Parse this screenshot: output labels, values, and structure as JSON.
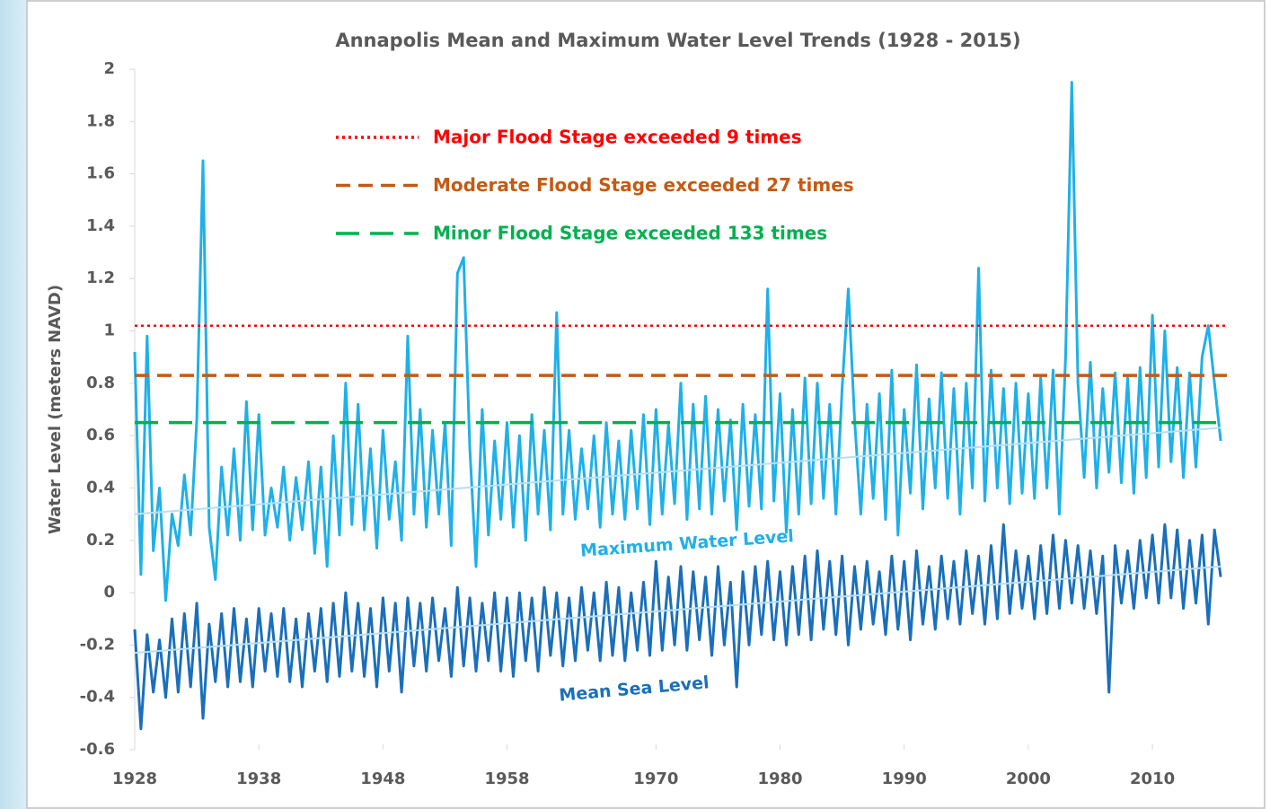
{
  "chart_data": {
    "type": "line",
    "title": "Annapolis Mean and Maximum Water Level Trends  (1928 - 2015)",
    "y_label": "Water Level (meters NAVD)",
    "xlim": [
      1928,
      2016
    ],
    "xticks": [
      1928,
      1938,
      1948,
      1958,
      1970,
      1980,
      1990,
      2000,
      2010
    ],
    "ylim": [
      -0.6,
      2
    ],
    "yticks": [
      -0.6,
      -0.4,
      -0.2,
      0,
      0.2,
      0.4,
      0.6,
      0.8,
      1,
      1.2,
      1.4,
      1.6,
      1.8,
      2
    ],
    "x": [
      1928,
      1928.5,
      1929,
      1929.5,
      1930,
      1930.5,
      1931,
      1931.5,
      1932,
      1932.5,
      1933,
      1933.5,
      1934,
      1934.5,
      1935,
      1935.5,
      1936,
      1936.5,
      1937,
      1937.5,
      1938,
      1938.5,
      1939,
      1939.5,
      1940,
      1940.5,
      1941,
      1941.5,
      1942,
      1942.5,
      1943,
      1943.5,
      1944,
      1944.5,
      1945,
      1945.5,
      1946,
      1946.5,
      1947,
      1947.5,
      1948,
      1948.5,
      1949,
      1949.5,
      1950,
      1950.5,
      1951,
      1951.5,
      1952,
      1952.5,
      1953,
      1953.5,
      1954,
      1954.5,
      1955,
      1955.5,
      1956,
      1956.5,
      1957,
      1957.5,
      1958,
      1958.5,
      1959,
      1959.5,
      1960,
      1960.5,
      1961,
      1961.5,
      1962,
      1962.5,
      1963,
      1963.5,
      1964,
      1964.5,
      1965,
      1965.5,
      1966,
      1966.5,
      1967,
      1967.5,
      1968,
      1968.5,
      1969,
      1969.5,
      1970,
      1970.5,
      1971,
      1971.5,
      1972,
      1972.5,
      1973,
      1973.5,
      1974,
      1974.5,
      1975,
      1975.5,
      1976,
      1976.5,
      1977,
      1977.5,
      1978,
      1978.5,
      1979,
      1979.5,
      1980,
      1980.5,
      1981,
      1981.5,
      1982,
      1982.5,
      1983,
      1983.5,
      1984,
      1984.5,
      1985,
      1985.5,
      1986,
      1986.5,
      1987,
      1987.5,
      1988,
      1988.5,
      1989,
      1989.5,
      1990,
      1990.5,
      1991,
      1991.5,
      1992,
      1992.5,
      1993,
      1993.5,
      1994,
      1994.5,
      1995,
      1995.5,
      1996,
      1996.5,
      1997,
      1997.5,
      1998,
      1998.5,
      1999,
      1999.5,
      2000,
      2000.5,
      2001,
      2001.5,
      2002,
      2002.5,
      2003,
      2003.5,
      2004,
      2004.5,
      2005,
      2005.5,
      2006,
      2006.5,
      2007,
      2007.5,
      2008,
      2008.5,
      2009,
      2009.5,
      2010,
      2010.5,
      2011,
      2011.5,
      2012,
      2012.5,
      2013,
      2013.5,
      2014,
      2014.5,
      2015,
      2015.5
    ],
    "series": [
      {
        "name": "Maximum Water Level",
        "color": "#1fb0e8",
        "values": [
          0.92,
          0.07,
          0.98,
          0.16,
          0.4,
          -0.03,
          0.3,
          0.18,
          0.45,
          0.22,
          0.66,
          1.65,
          0.25,
          0.05,
          0.48,
          0.22,
          0.55,
          0.2,
          0.73,
          0.24,
          0.68,
          0.22,
          0.4,
          0.25,
          0.48,
          0.2,
          0.44,
          0.24,
          0.5,
          0.15,
          0.48,
          0.1,
          0.6,
          0.22,
          0.8,
          0.26,
          0.72,
          0.24,
          0.55,
          0.17,
          0.62,
          0.28,
          0.5,
          0.2,
          0.98,
          0.3,
          0.7,
          0.25,
          0.62,
          0.3,
          0.65,
          0.18,
          1.22,
          1.28,
          0.55,
          0.1,
          0.7,
          0.22,
          0.58,
          0.28,
          0.65,
          0.25,
          0.6,
          0.2,
          0.68,
          0.3,
          0.62,
          0.24,
          1.07,
          0.3,
          0.62,
          0.28,
          0.55,
          0.32,
          0.6,
          0.25,
          0.65,
          0.3,
          0.58,
          0.28,
          0.62,
          0.32,
          0.68,
          0.26,
          0.7,
          0.3,
          0.64,
          0.34,
          0.8,
          0.28,
          0.72,
          0.32,
          0.75,
          0.3,
          0.7,
          0.35,
          0.66,
          0.24,
          0.72,
          0.33,
          0.68,
          0.32,
          1.16,
          0.35,
          0.76,
          0.23,
          0.7,
          0.3,
          0.82,
          0.34,
          0.8,
          0.36,
          0.72,
          0.3,
          0.78,
          1.16,
          0.66,
          0.3,
          0.72,
          0.36,
          0.76,
          0.28,
          0.85,
          0.22,
          0.7,
          0.38,
          0.87,
          0.32,
          0.74,
          0.4,
          0.84,
          0.36,
          0.78,
          0.3,
          0.8,
          0.4,
          1.24,
          0.35,
          0.85,
          0.4,
          0.78,
          0.34,
          0.8,
          0.38,
          0.76,
          0.36,
          0.82,
          0.4,
          0.85,
          0.3,
          0.9,
          1.95,
          0.8,
          0.44,
          0.88,
          0.4,
          0.78,
          0.46,
          0.84,
          0.42,
          0.82,
          0.38,
          0.86,
          0.44,
          1.06,
          0.48,
          1.0,
          0.5,
          0.86,
          0.44,
          0.84,
          0.48,
          0.9,
          1.02,
          0.8,
          0.58
        ]
      },
      {
        "name": "Mean Sea Level",
        "color": "#1a6fba",
        "values": [
          -0.14,
          -0.52,
          -0.16,
          -0.38,
          -0.18,
          -0.4,
          -0.1,
          -0.38,
          -0.08,
          -0.36,
          -0.04,
          -0.48,
          -0.12,
          -0.34,
          -0.08,
          -0.36,
          -0.06,
          -0.34,
          -0.1,
          -0.36,
          -0.06,
          -0.3,
          -0.08,
          -0.32,
          -0.06,
          -0.34,
          -0.1,
          -0.36,
          -0.08,
          -0.3,
          -0.06,
          -0.34,
          -0.04,
          -0.32,
          0,
          -0.3,
          -0.04,
          -0.32,
          -0.06,
          -0.36,
          -0.02,
          -0.3,
          -0.04,
          -0.38,
          -0.02,
          -0.28,
          -0.04,
          -0.3,
          -0.02,
          -0.26,
          -0.06,
          -0.32,
          0.02,
          -0.28,
          -0.02,
          -0.3,
          -0.04,
          -0.26,
          0,
          -0.3,
          -0.02,
          -0.32,
          0,
          -0.26,
          -0.02,
          -0.3,
          0.02,
          -0.24,
          0,
          -0.28,
          -0.02,
          -0.26,
          0.02,
          -0.22,
          0,
          -0.26,
          0.04,
          -0.24,
          0.02,
          -0.26,
          0,
          -0.22,
          0.04,
          -0.24,
          0.12,
          -0.22,
          0.06,
          -0.2,
          0.1,
          -0.22,
          0.08,
          -0.18,
          0.06,
          -0.24,
          0.1,
          -0.2,
          0.04,
          -0.36,
          0.08,
          -0.2,
          0.1,
          -0.16,
          0.12,
          -0.18,
          0.08,
          -0.2,
          0.1,
          -0.16,
          0.14,
          -0.18,
          0.16,
          -0.14,
          0.12,
          -0.16,
          0.14,
          -0.2,
          0.1,
          -0.14,
          0.12,
          -0.12,
          0.08,
          -0.16,
          0.14,
          -0.14,
          0.12,
          -0.18,
          0.16,
          -0.12,
          0.1,
          -0.14,
          0.14,
          -0.1,
          0.12,
          -0.12,
          0.16,
          -0.08,
          0.14,
          -0.12,
          0.18,
          -0.1,
          0.26,
          -0.08,
          0.16,
          -0.06,
          0.14,
          -0.1,
          0.18,
          -0.08,
          0.22,
          -0.06,
          0.2,
          -0.04,
          0.18,
          -0.06,
          0.16,
          -0.08,
          0.14,
          -0.38,
          0.18,
          -0.04,
          0.16,
          -0.06,
          0.2,
          -0.02,
          0.22,
          -0.04,
          0.26,
          -0.02,
          0.24,
          -0.06,
          0.2,
          -0.04,
          0.22,
          -0.12,
          0.24,
          0.06
        ]
      }
    ],
    "trend_lines": [
      {
        "x": [
          1928,
          2015.5
        ],
        "values": [
          0.3,
          0.63
        ],
        "color": "#b7def5"
      },
      {
        "x": [
          1928,
          2015.5
        ],
        "values": [
          -0.23,
          0.1
        ],
        "color": "#b7def5"
      }
    ],
    "reference_lines": [
      {
        "label": "Major Flood Stage exceeded 9 times",
        "value": 1.02,
        "color": "#ff0000",
        "style": "dotted"
      },
      {
        "label": "Moderate Flood Stage exceeded 27 times",
        "value": 0.83,
        "color": "#c55a11",
        "style": "dashed"
      },
      {
        "label": "Minor Flood Stage exceeded 133 times",
        "value": 0.65,
        "color": "#00b050",
        "style": "long-dash"
      }
    ]
  }
}
